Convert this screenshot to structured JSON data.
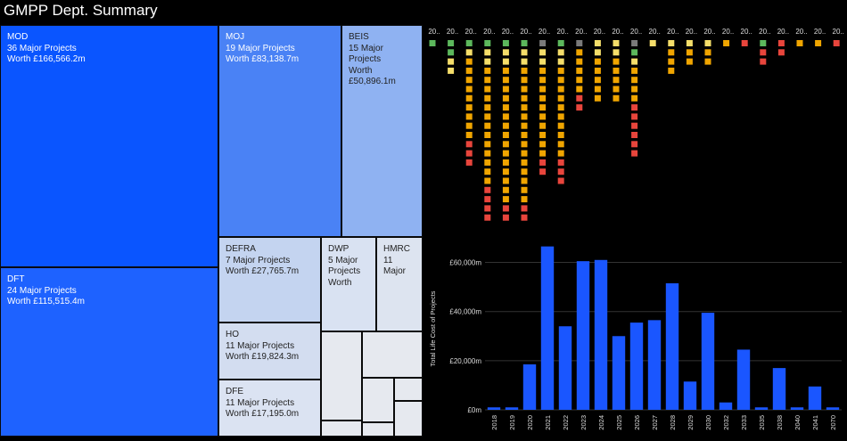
{
  "title": "GMPP Dept. Summary",
  "treemap": {
    "tiles": [
      {
        "id": "mod",
        "name": "MOD",
        "count_text": "36 Major Projects",
        "value_text": "Worth £166,566.2m",
        "x": 0,
        "y": 0,
        "w": 245,
        "h": 272,
        "color": "#0a55ff",
        "light": false
      },
      {
        "id": "dft",
        "name": "DFT",
        "count_text": "24 Major Projects",
        "value_text": "Worth £115,515.4m",
        "x": 0,
        "y": 272,
        "w": 245,
        "h": 190,
        "color": "#1e62ff",
        "light": false
      },
      {
        "id": "moj",
        "name": "MOJ",
        "count_text": "19 Major Projects",
        "value_text": "Worth £83,138.7m",
        "x": 245,
        "y": 0,
        "w": 138,
        "h": 238,
        "color": "#4a82f5",
        "light": false
      },
      {
        "id": "beis",
        "name": "BEIS",
        "lines": [
          "15 Major",
          "Projects",
          "Worth",
          "£50,896.1m"
        ],
        "x": 383,
        "y": 0,
        "w": 91,
        "h": 238,
        "color": "#8fb2f2",
        "light": true
      },
      {
        "id": "defra",
        "name": "DEFRA",
        "count_text": "7 Major Projects",
        "value_text": "Worth £27,765.7m",
        "x": 245,
        "y": 238,
        "w": 115,
        "h": 96,
        "color": "#c4d4f0",
        "light": true
      },
      {
        "id": "dwp",
        "name": "DWP",
        "lines": [
          "5 Major",
          "Projects",
          "Worth"
        ],
        "x": 360,
        "y": 238,
        "w": 62,
        "h": 106,
        "color": "#d9e2f2",
        "light": true
      },
      {
        "id": "hmrc",
        "name": "HMRC",
        "lines": [
          "11",
          "Major"
        ],
        "x": 422,
        "y": 238,
        "w": 52,
        "h": 106,
        "color": "#dde4f0",
        "light": true
      },
      {
        "id": "ho",
        "name": "HO",
        "count_text": "11 Major Projects",
        "value_text": "Worth £19,824.3m",
        "x": 245,
        "y": 334,
        "w": 115,
        "h": 64,
        "color": "#d3ddf0",
        "light": true
      },
      {
        "id": "dfe",
        "name": "DFE",
        "count_text": "11 Major Projects",
        "value_text": "Worth £17,195.0m",
        "x": 245,
        "y": 398,
        "w": 115,
        "h": 64,
        "color": "#dbe3f2",
        "light": true
      }
    ]
  },
  "dot_matrix": {
    "column_label": "20..",
    "colors": {
      "G": "#5cb85c",
      "Y": "#f5de6a",
      "O": "#f0a500",
      "R": "#e8453c",
      "N": "#7a7a7a"
    },
    "columns": [
      "G",
      "GGYY",
      "GYOOOOOOOOORRR",
      "GYYOOOOOOOOOOOOORRRR",
      "GYYOOOOOOOOOOOOOOORR",
      "GYYOOOOOOOOOOOOOOORR",
      "NYYOOOOOOOOOORR",
      "GYYOOOOOOOOOORRR",
      "NOOOOORR",
      "YYOOOOO",
      "YYOOOOO",
      "NGYOOOORRRRRR",
      "Y",
      "YOOO",
      "YOO",
      "YOO",
      "O",
      "R",
      "GRR",
      "RR",
      "O",
      "O",
      "R"
    ]
  },
  "chart_data": {
    "type": "bar",
    "ylabel": "Total Life Cost of Projects",
    "yticks": [
      0,
      20000,
      40000,
      60000
    ],
    "ytick_labels": [
      "£0m",
      "£20,000m",
      "£40,000m",
      "£60,000m"
    ],
    "ylim": [
      0,
      66000
    ],
    "grid": true,
    "color": "#1a56ff",
    "categories": [
      "2018",
      "2019",
      "2020",
      "2021",
      "2022",
      "2023",
      "2024",
      "2025",
      "2026",
      "2027",
      "2028",
      "2029",
      "2030",
      "2032",
      "2033",
      "2035",
      "2038",
      "2040",
      "2041",
      "2070"
    ],
    "values": [
      1000,
      1000,
      18500,
      66500,
      34000,
      60500,
      61000,
      30000,
      35500,
      36500,
      51500,
      11500,
      39500,
      3000,
      24500,
      1000,
      17000,
      1000,
      9500,
      1000
    ]
  }
}
